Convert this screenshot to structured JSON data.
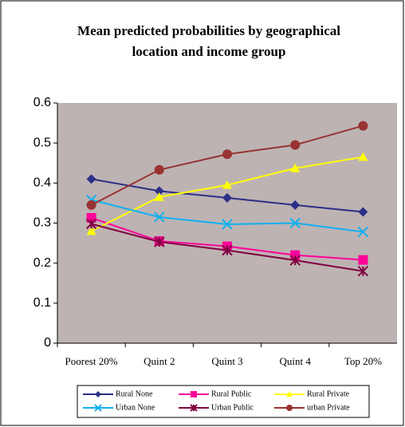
{
  "chart_data": {
    "type": "line",
    "title": [
      "Mean predicted probabilities by geographical",
      "location and income group"
    ],
    "categories": [
      "Poorest 20%",
      "Quint 2",
      "Quint 3",
      "Quint 4",
      "Top 20%"
    ],
    "ylim": [
      0,
      0.6
    ],
    "yticks": [
      0,
      0.1,
      0.2,
      0.3,
      0.4,
      0.5,
      0.6
    ],
    "grid": false,
    "plot_background": "#bdb3b3",
    "series": [
      {
        "name": "Rural None",
        "color": "#2b2f86",
        "marker": "diamond",
        "values": [
          0.41,
          0.38,
          0.363,
          0.345,
          0.328
        ]
      },
      {
        "name": "Rural Public",
        "color": "#ff0099",
        "marker": "square",
        "values": [
          0.313,
          0.255,
          0.242,
          0.22,
          0.208
        ]
      },
      {
        "name": "Rural Private",
        "color": "#ffff00",
        "marker": "triangle",
        "values": [
          0.28,
          0.365,
          0.395,
          0.437,
          0.465
        ]
      },
      {
        "name": "Urban None",
        "color": "#11b0f0",
        "marker": "x",
        "values": [
          0.358,
          0.315,
          0.297,
          0.3,
          0.278
        ]
      },
      {
        "name": "Urban Public",
        "color": "#800040",
        "marker": "asterisk",
        "values": [
          0.298,
          0.253,
          0.232,
          0.207,
          0.18
        ]
      },
      {
        "name": "urban Private",
        "color": "#993333",
        "marker": "circle",
        "values": [
          0.345,
          0.433,
          0.472,
          0.495,
          0.543
        ]
      }
    ]
  }
}
